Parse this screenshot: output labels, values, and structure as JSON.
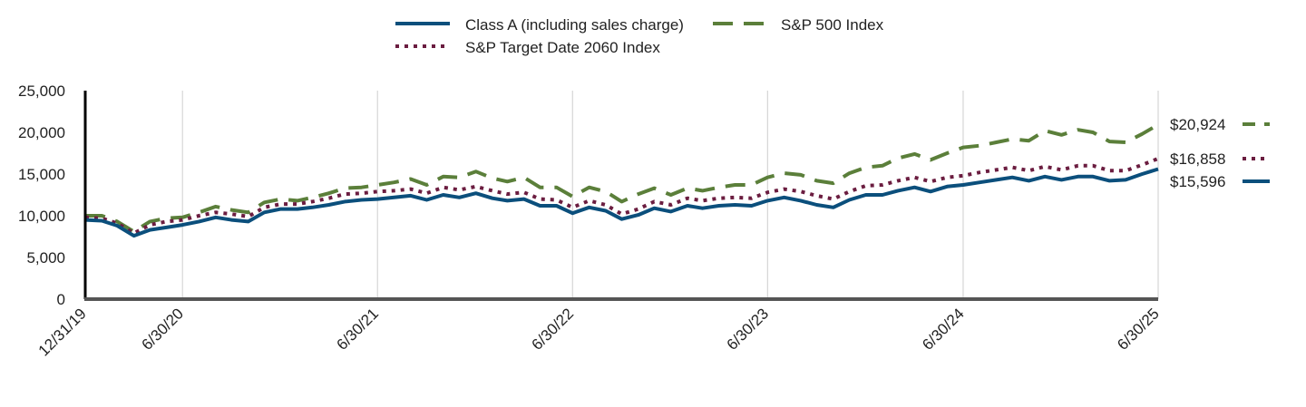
{
  "chart_data": {
    "type": "line",
    "title": "",
    "xlabel": "",
    "ylabel": "",
    "ylim": [
      0,
      25000
    ],
    "yticks": [
      "25,000",
      "20,000",
      "15,000",
      "10,000",
      "5,000",
      "0"
    ],
    "ytick_values": [
      25000,
      20000,
      15000,
      10000,
      5000,
      0
    ],
    "xlim": [
      "2019-12-31",
      "2025-06-30"
    ],
    "x_tick_labels": [
      "12/31/19",
      "6/30/20",
      "6/30/21",
      "6/30/22",
      "6/30/23",
      "6/30/24",
      "6/30/25"
    ],
    "x_tick_dates": [
      "2019-12-31",
      "2020-06-30",
      "2021-06-30",
      "2022-06-30",
      "2023-06-30",
      "2024-06-30",
      "2025-06-30"
    ],
    "vertical_grid": true,
    "legend_position": "top",
    "x": [
      "2019-12-31",
      "2020-01-31",
      "2020-02-29",
      "2020-03-31",
      "2020-04-30",
      "2020-05-31",
      "2020-06-30",
      "2020-07-31",
      "2020-08-31",
      "2020-09-30",
      "2020-10-31",
      "2020-11-30",
      "2020-12-31",
      "2021-01-31",
      "2021-02-28",
      "2021-03-31",
      "2021-04-30",
      "2021-05-31",
      "2021-06-30",
      "2021-07-31",
      "2021-08-31",
      "2021-09-30",
      "2021-10-31",
      "2021-11-30",
      "2021-12-31",
      "2022-01-31",
      "2022-02-28",
      "2022-03-31",
      "2022-04-30",
      "2022-05-31",
      "2022-06-30",
      "2022-07-31",
      "2022-08-31",
      "2022-09-30",
      "2022-10-31",
      "2022-11-30",
      "2022-12-31",
      "2023-01-31",
      "2023-02-28",
      "2023-03-31",
      "2023-04-30",
      "2023-05-31",
      "2023-06-30",
      "2023-07-31",
      "2023-08-31",
      "2023-09-30",
      "2023-10-31",
      "2023-11-30",
      "2023-12-31",
      "2024-01-31",
      "2024-02-29",
      "2024-03-31",
      "2024-04-30",
      "2024-05-31",
      "2024-06-30",
      "2024-07-31",
      "2024-08-31",
      "2024-09-30",
      "2024-10-31",
      "2024-11-30",
      "2024-12-31",
      "2025-01-31",
      "2025-02-28",
      "2025-03-31",
      "2025-04-30",
      "2025-05-31",
      "2025-06-30"
    ],
    "series": [
      {
        "name": "Class A (including sales charge)",
        "color": "#0b4f7c",
        "dash": "solid",
        "end_label": "$15,596",
        "values": [
          9500,
          9400,
          8800,
          7600,
          8300,
          8600,
          8900,
          9300,
          9800,
          9500,
          9300,
          10400,
          10800,
          10800,
          11000,
          11300,
          11700,
          11900,
          12000,
          12200,
          12400,
          11900,
          12500,
          12200,
          12700,
          12100,
          11800,
          12000,
          11200,
          11200,
          10300,
          11000,
          10600,
          9600,
          10100,
          10900,
          10500,
          11200,
          10900,
          11200,
          11300,
          11200,
          11800,
          12200,
          11800,
          11300,
          11000,
          11900,
          12500,
          12500,
          13000,
          13400,
          12900,
          13500,
          13700,
          14000,
          14300,
          14600,
          14200,
          14700,
          14300,
          14700,
          14700,
          14200,
          14300,
          15000,
          15596
        ]
      },
      {
        "name": "S&P 500 Index",
        "color": "#5b7f3a",
        "dash": "dashed",
        "end_label": "$20,924",
        "values": [
          10000,
          10000,
          9300,
          8100,
          9300,
          9700,
          9800,
          10400,
          11100,
          10700,
          10400,
          11600,
          12000,
          11800,
          12200,
          12700,
          13300,
          13400,
          13700,
          14000,
          14400,
          13700,
          14700,
          14600,
          15300,
          14500,
          14100,
          14600,
          13400,
          13400,
          12300,
          13400,
          12900,
          11700,
          12600,
          13300,
          12500,
          13300,
          13000,
          13400,
          13700,
          13700,
          14600,
          15100,
          14900,
          14200,
          13900,
          15100,
          15800,
          16000,
          16900,
          17400,
          16700,
          17500,
          18200,
          18400,
          18800,
          19200,
          19000,
          20200,
          19700,
          20300,
          20000,
          18900,
          18800,
          19800,
          20924
        ]
      },
      {
        "name": "S&P Target Date 2060 Index",
        "color": "#6b1d40",
        "dash": "dotted",
        "end_label": "$16,858",
        "values": [
          9800,
          9700,
          9100,
          7900,
          8900,
          9300,
          9500,
          10000,
          10400,
          10200,
          9900,
          11000,
          11400,
          11400,
          11700,
          12100,
          12600,
          12700,
          12900,
          13000,
          13200,
          12700,
          13400,
          13100,
          13500,
          13000,
          12600,
          12800,
          12000,
          11900,
          11000,
          11800,
          11300,
          10200,
          10800,
          11700,
          11300,
          12100,
          11800,
          12100,
          12200,
          12100,
          12800,
          13200,
          12900,
          12400,
          12000,
          12900,
          13600,
          13700,
          14200,
          14600,
          14100,
          14600,
          14800,
          15200,
          15500,
          15800,
          15400,
          15900,
          15500,
          16000,
          16000,
          15400,
          15400,
          16100,
          16858
        ]
      }
    ]
  }
}
